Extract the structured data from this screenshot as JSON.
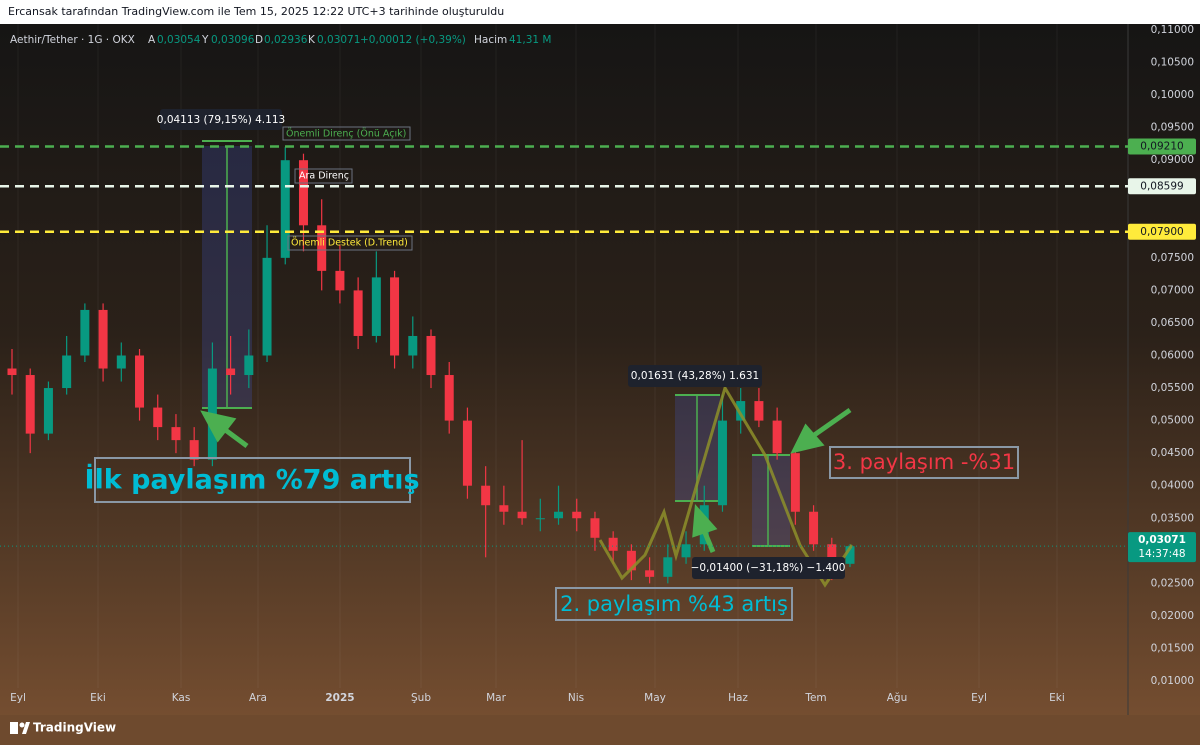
{
  "header": {
    "title": "Ercansak tarafından TradingView.com ile Tem 15, 2025 12:22 UTC+3 tarihinde oluşturuldu"
  },
  "legend": {
    "symbol": "Aethir/Tether · 1G · OKX",
    "open_label": "A",
    "open": "0,03054",
    "high_label": "Y",
    "high": "0,03096",
    "low_label": "D",
    "low": "0,02936",
    "close_label": "K",
    "close": "0,03071",
    "change": "+0,00012 (+0,39%)",
    "volume_label": "Hacim",
    "volume": "41,31 M"
  },
  "chart": {
    "type": "candlestick",
    "ylim": [
      0.01,
      0.11
    ],
    "yticks": [
      {
        "value": 0.01,
        "label": "0,01000"
      },
      {
        "value": 0.015,
        "label": "0,01500"
      },
      {
        "value": 0.02,
        "label": "0,02000"
      },
      {
        "value": 0.025,
        "label": "0,02500"
      },
      {
        "value": 0.035,
        "label": "0,03500"
      },
      {
        "value": 0.04,
        "label": "0,04000"
      },
      {
        "value": 0.045,
        "label": "0,04500"
      },
      {
        "value": 0.05,
        "label": "0,05000"
      },
      {
        "value": 0.055,
        "label": "0,05500"
      },
      {
        "value": 0.06,
        "label": "0,06000"
      },
      {
        "value": 0.065,
        "label": "0,06500"
      },
      {
        "value": 0.07,
        "label": "0,07000"
      },
      {
        "value": 0.075,
        "label": "0,07500"
      },
      {
        "value": 0.09,
        "label": "0,09000"
      },
      {
        "value": 0.095,
        "label": "0,09500"
      },
      {
        "value": 0.1,
        "label": "0,10000"
      },
      {
        "value": 0.105,
        "label": "0,10500"
      },
      {
        "value": 0.11,
        "label": "0,11000"
      }
    ],
    "xlabels": [
      "Eyl",
      "Eki",
      "Kas",
      "Ara",
      "2025",
      "Şub",
      "Mar",
      "Nis",
      "May",
      "Haz",
      "Tem",
      "Ağu",
      "Eyl",
      "Eki"
    ],
    "up_color": "#089981",
    "down_color": "#f23645",
    "candles": [
      {
        "o": 0.058,
        "h": 0.061,
        "l": 0.054,
        "c": 0.057
      },
      {
        "o": 0.057,
        "h": 0.058,
        "l": 0.045,
        "c": 0.048
      },
      {
        "o": 0.048,
        "h": 0.056,
        "l": 0.047,
        "c": 0.055
      },
      {
        "o": 0.055,
        "h": 0.063,
        "l": 0.054,
        "c": 0.06
      },
      {
        "o": 0.06,
        "h": 0.068,
        "l": 0.059,
        "c": 0.067
      },
      {
        "o": 0.067,
        "h": 0.068,
        "l": 0.056,
        "c": 0.058
      },
      {
        "o": 0.058,
        "h": 0.062,
        "l": 0.056,
        "c": 0.06
      },
      {
        "o": 0.06,
        "h": 0.061,
        "l": 0.05,
        "c": 0.052
      },
      {
        "o": 0.052,
        "h": 0.054,
        "l": 0.047,
        "c": 0.049
      },
      {
        "o": 0.049,
        "h": 0.051,
        "l": 0.045,
        "c": 0.047
      },
      {
        "o": 0.047,
        "h": 0.049,
        "l": 0.043,
        "c": 0.044
      },
      {
        "o": 0.044,
        "h": 0.062,
        "l": 0.043,
        "c": 0.058
      },
      {
        "o": 0.058,
        "h": 0.063,
        "l": 0.054,
        "c": 0.057
      },
      {
        "o": 0.057,
        "h": 0.064,
        "l": 0.055,
        "c": 0.06
      },
      {
        "o": 0.06,
        "h": 0.08,
        "l": 0.059,
        "c": 0.075
      },
      {
        "o": 0.075,
        "h": 0.092,
        "l": 0.074,
        "c": 0.09
      },
      {
        "o": 0.09,
        "h": 0.091,
        "l": 0.076,
        "c": 0.08
      },
      {
        "o": 0.08,
        "h": 0.084,
        "l": 0.07,
        "c": 0.073
      },
      {
        "o": 0.073,
        "h": 0.077,
        "l": 0.068,
        "c": 0.07
      },
      {
        "o": 0.07,
        "h": 0.072,
        "l": 0.061,
        "c": 0.063
      },
      {
        "o": 0.063,
        "h": 0.076,
        "l": 0.062,
        "c": 0.072
      },
      {
        "o": 0.072,
        "h": 0.073,
        "l": 0.058,
        "c": 0.06
      },
      {
        "o": 0.06,
        "h": 0.066,
        "l": 0.058,
        "c": 0.063
      },
      {
        "o": 0.063,
        "h": 0.064,
        "l": 0.055,
        "c": 0.057
      },
      {
        "o": 0.057,
        "h": 0.059,
        "l": 0.048,
        "c": 0.05
      },
      {
        "o": 0.05,
        "h": 0.052,
        "l": 0.038,
        "c": 0.04
      },
      {
        "o": 0.04,
        "h": 0.043,
        "l": 0.029,
        "c": 0.037
      },
      {
        "o": 0.037,
        "h": 0.04,
        "l": 0.034,
        "c": 0.036
      },
      {
        "o": 0.036,
        "h": 0.047,
        "l": 0.034,
        "c": 0.035
      },
      {
        "o": 0.035,
        "h": 0.038,
        "l": 0.033,
        "c": 0.035
      },
      {
        "o": 0.035,
        "h": 0.04,
        "l": 0.034,
        "c": 0.036
      },
      {
        "o": 0.036,
        "h": 0.038,
        "l": 0.033,
        "c": 0.035
      },
      {
        "o": 0.035,
        "h": 0.036,
        "l": 0.03,
        "c": 0.032
      },
      {
        "o": 0.032,
        "h": 0.033,
        "l": 0.028,
        "c": 0.03
      },
      {
        "o": 0.03,
        "h": 0.031,
        "l": 0.0255,
        "c": 0.027
      },
      {
        "o": 0.027,
        "h": 0.029,
        "l": 0.025,
        "c": 0.026
      },
      {
        "o": 0.026,
        "h": 0.031,
        "l": 0.025,
        "c": 0.029
      },
      {
        "o": 0.029,
        "h": 0.033,
        "l": 0.028,
        "c": 0.031
      },
      {
        "o": 0.031,
        "h": 0.04,
        "l": 0.03,
        "c": 0.037
      },
      {
        "o": 0.037,
        "h": 0.054,
        "l": 0.036,
        "c": 0.05
      },
      {
        "o": 0.05,
        "h": 0.055,
        "l": 0.048,
        "c": 0.053
      },
      {
        "o": 0.053,
        "h": 0.055,
        "l": 0.049,
        "c": 0.05
      },
      {
        "o": 0.05,
        "h": 0.052,
        "l": 0.044,
        "c": 0.045
      },
      {
        "o": 0.045,
        "h": 0.046,
        "l": 0.034,
        "c": 0.036
      },
      {
        "o": 0.036,
        "h": 0.037,
        "l": 0.03,
        "c": 0.031
      },
      {
        "o": 0.031,
        "h": 0.032,
        "l": 0.0255,
        "c": 0.028
      },
      {
        "o": 0.028,
        "h": 0.031,
        "l": 0.0275,
        "c": 0.03071
      }
    ],
    "levels": [
      {
        "value": 0.0921,
        "label": "0,09210",
        "color": "#4caf50"
      },
      {
        "value": 0.08599,
        "label": "0,08599",
        "color": "#e8f5e9"
      },
      {
        "value": 0.079,
        "label": "0,07900",
        "color": "#ffeb3b"
      }
    ],
    "last_price": {
      "value": 0.03071,
      "label": "0,03071",
      "countdown": "14:37:48"
    }
  },
  "annotations": {
    "measure1": "0,04113 (79,15%) 4.113",
    "resistance_major": "Önemli Direnç (Önü Açık)",
    "resistance_mid": "Ara Direnç",
    "support_major": "Önemli Destek (D.Trend)",
    "measure2": "0,01631 (43,28%) 1.631",
    "measure3": "−0,01400 (−31,18%) −1.400",
    "post1": "İlk paylaşım %79 artış",
    "post2": "2. paylaşım %43 artış",
    "post3": "3. paylaşım -%31"
  },
  "footer": {
    "brand": "TradingView"
  }
}
